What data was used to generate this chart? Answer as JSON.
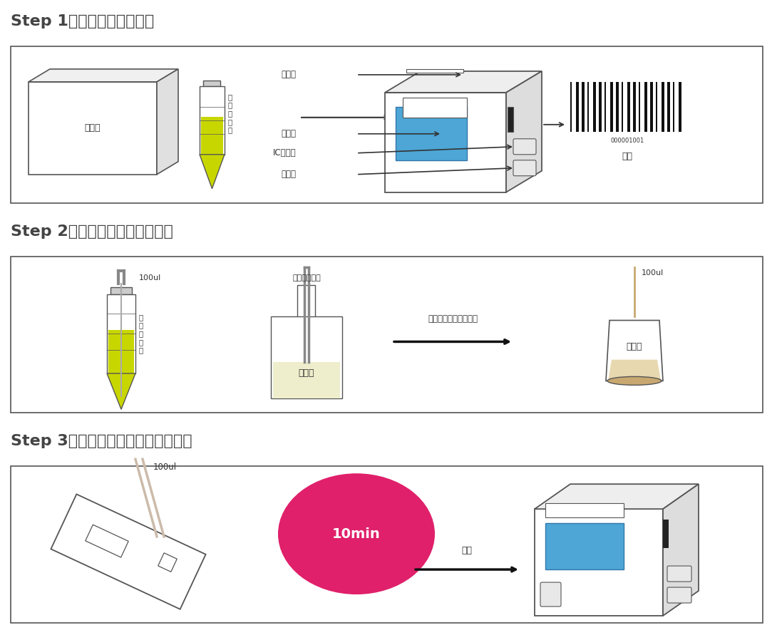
{
  "step1_title": "Step 1：回温、开机、扫码",
  "step2_title": "Step 2：取样、加稀释液，混匀",
  "step3_title": "Step 3：加样，读数，打印检测报告",
  "bg_color": "#ffffff",
  "box_color": "#333333",
  "step_box_bg": "#ffffff",
  "yellow_green": "#c8d600",
  "light_yellow": "#e8e8a0",
  "blue": "#4da6d6",
  "pink": "#e0206a",
  "tan": "#c8a870",
  "light_tan": "#e8d8b0",
  "gray": "#888888",
  "dark": "#222222",
  "arrow_color": "#111111",
  "label_color": "#333333",
  "title_color": "#444444"
}
